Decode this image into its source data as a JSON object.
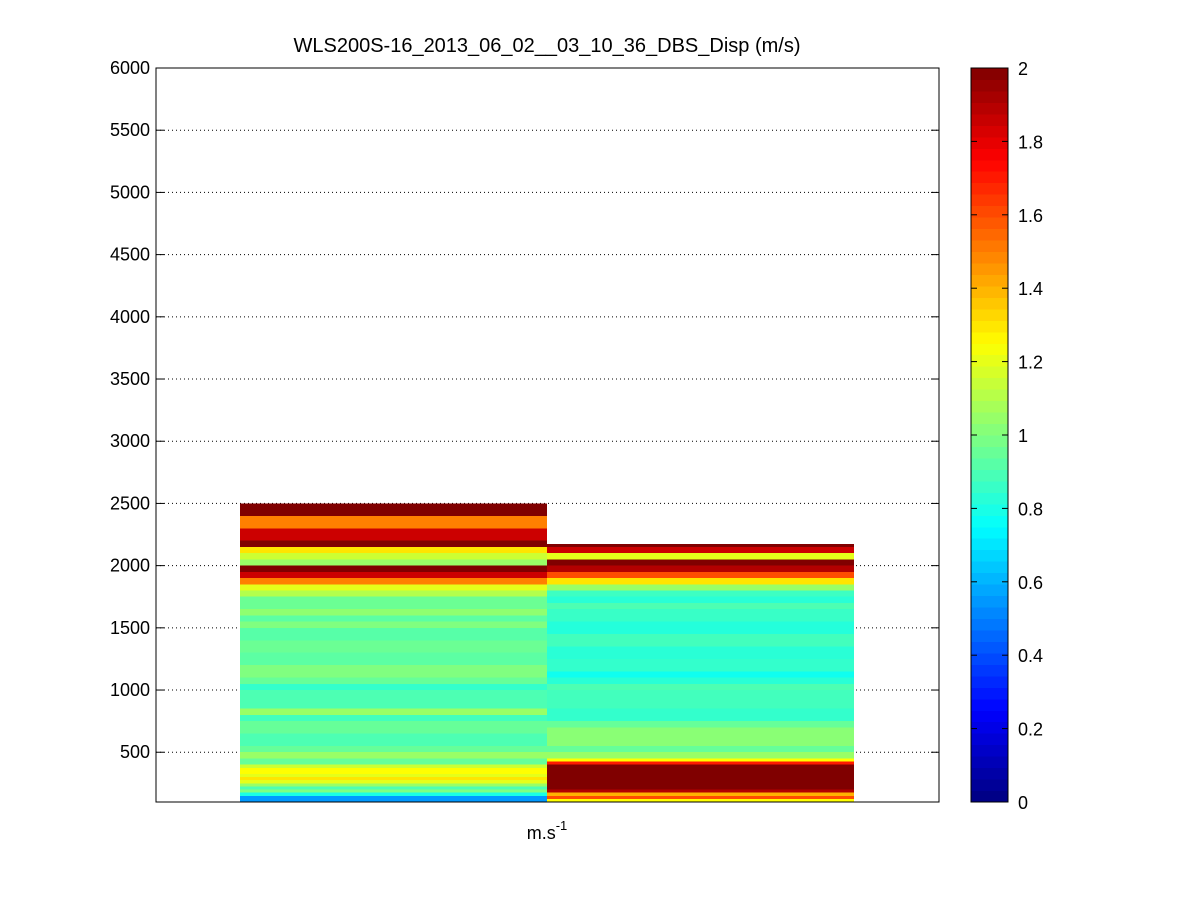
{
  "chart_data": {
    "type": "heatmap",
    "title": "WLS200S-16_2013_06_02__03_10_36_DBS_Disp (m/s)",
    "xlabel_base": "m.s",
    "xlabel_sup": "-1",
    "ylabel": "",
    "ylim": [
      100,
      6000
    ],
    "yticks": [
      500,
      1000,
      1500,
      2000,
      2500,
      3000,
      3500,
      4000,
      4500,
      5000,
      5500,
      6000
    ],
    "grid": "horizontal-dotted",
    "colormap": "jet",
    "clim": [
      0,
      2
    ],
    "colorbar_ticks": [
      0,
      0.2,
      0.4,
      0.6,
      0.8,
      1,
      1.2,
      1.4,
      1.6,
      1.8,
      2
    ],
    "colorbar_position": "right",
    "columns": [
      {
        "bands": [
          {
            "y0": 100,
            "y1": 150,
            "v": 0.55
          },
          {
            "y0": 150,
            "y1": 175,
            "v": 0.8
          },
          {
            "y0": 175,
            "y1": 200,
            "v": 1.0
          },
          {
            "y0": 200,
            "y1": 225,
            "v": 0.9
          },
          {
            "y0": 225,
            "y1": 250,
            "v": 1.05
          },
          {
            "y0": 250,
            "y1": 275,
            "v": 1.2
          },
          {
            "y0": 275,
            "y1": 300,
            "v": 1.3
          },
          {
            "y0": 300,
            "y1": 325,
            "v": 1.2
          },
          {
            "y0": 325,
            "y1": 375,
            "v": 1.25
          },
          {
            "y0": 375,
            "y1": 400,
            "v": 1.15
          },
          {
            "y0": 400,
            "y1": 450,
            "v": 0.95
          },
          {
            "y0": 450,
            "y1": 500,
            "v": 1.05
          },
          {
            "y0": 500,
            "y1": 550,
            "v": 0.95
          },
          {
            "y0": 550,
            "y1": 650,
            "v": 0.9
          },
          {
            "y0": 650,
            "y1": 750,
            "v": 0.95
          },
          {
            "y0": 750,
            "y1": 800,
            "v": 0.88
          },
          {
            "y0": 800,
            "y1": 850,
            "v": 1.05
          },
          {
            "y0": 850,
            "y1": 1000,
            "v": 0.9
          },
          {
            "y0": 1000,
            "y1": 1050,
            "v": 0.85
          },
          {
            "y0": 1050,
            "y1": 1100,
            "v": 0.95
          },
          {
            "y0": 1100,
            "y1": 1200,
            "v": 1.0
          },
          {
            "y0": 1200,
            "y1": 1300,
            "v": 0.93
          },
          {
            "y0": 1300,
            "y1": 1400,
            "v": 0.96
          },
          {
            "y0": 1400,
            "y1": 1500,
            "v": 0.92
          },
          {
            "y0": 1500,
            "y1": 1550,
            "v": 1.0
          },
          {
            "y0": 1550,
            "y1": 1600,
            "v": 0.93
          },
          {
            "y0": 1600,
            "y1": 1650,
            "v": 1.03
          },
          {
            "y0": 1650,
            "y1": 1750,
            "v": 0.96
          },
          {
            "y0": 1750,
            "y1": 1800,
            "v": 1.1
          },
          {
            "y0": 1800,
            "y1": 1850,
            "v": 1.2
          },
          {
            "y0": 1850,
            "y1": 1900,
            "v": 1.5
          },
          {
            "y0": 1900,
            "y1": 1950,
            "v": 1.85
          },
          {
            "y0": 1950,
            "y1": 2000,
            "v": 2.0
          },
          {
            "y0": 2000,
            "y1": 2050,
            "v": 1.05
          },
          {
            "y0": 2050,
            "y1": 2100,
            "v": 1.15
          },
          {
            "y0": 2100,
            "y1": 2150,
            "v": 1.3
          },
          {
            "y0": 2150,
            "y1": 2200,
            "v": 2.0
          },
          {
            "y0": 2200,
            "y1": 2300,
            "v": 1.85
          },
          {
            "y0": 2300,
            "y1": 2400,
            "v": 1.5
          },
          {
            "y0": 2400,
            "y1": 2500,
            "v": 2.0
          }
        ]
      },
      {
        "bands": [
          {
            "y0": 100,
            "y1": 125,
            "v": 1.25
          },
          {
            "y0": 125,
            "y1": 150,
            "v": 1.6
          },
          {
            "y0": 150,
            "y1": 175,
            "v": 1.4
          },
          {
            "y0": 175,
            "y1": 200,
            "v": 1.9
          },
          {
            "y0": 200,
            "y1": 400,
            "v": 2.0
          },
          {
            "y0": 400,
            "y1": 425,
            "v": 1.7
          },
          {
            "y0": 425,
            "y1": 450,
            "v": 1.25
          },
          {
            "y0": 450,
            "y1": 500,
            "v": 1.05
          },
          {
            "y0": 500,
            "y1": 550,
            "v": 0.95
          },
          {
            "y0": 550,
            "y1": 700,
            "v": 1.02
          },
          {
            "y0": 700,
            "y1": 750,
            "v": 0.95
          },
          {
            "y0": 750,
            "y1": 850,
            "v": 0.85
          },
          {
            "y0": 850,
            "y1": 1000,
            "v": 0.88
          },
          {
            "y0": 1000,
            "y1": 1050,
            "v": 0.9
          },
          {
            "y0": 1050,
            "y1": 1100,
            "v": 0.83
          },
          {
            "y0": 1100,
            "y1": 1150,
            "v": 0.78
          },
          {
            "y0": 1150,
            "y1": 1250,
            "v": 0.85
          },
          {
            "y0": 1250,
            "y1": 1350,
            "v": 0.83
          },
          {
            "y0": 1350,
            "y1": 1450,
            "v": 0.88
          },
          {
            "y0": 1450,
            "y1": 1550,
            "v": 0.82
          },
          {
            "y0": 1550,
            "y1": 1650,
            "v": 0.86
          },
          {
            "y0": 1650,
            "y1": 1700,
            "v": 0.9
          },
          {
            "y0": 1700,
            "y1": 1750,
            "v": 0.83
          },
          {
            "y0": 1750,
            "y1": 1800,
            "v": 0.87
          },
          {
            "y0": 1800,
            "y1": 1850,
            "v": 1.05
          },
          {
            "y0": 1850,
            "y1": 1900,
            "v": 1.3
          },
          {
            "y0": 1900,
            "y1": 1950,
            "v": 1.6
          },
          {
            "y0": 1950,
            "y1": 2000,
            "v": 1.9
          },
          {
            "y0": 2000,
            "y1": 2050,
            "v": 2.0
          },
          {
            "y0": 2050,
            "y1": 2100,
            "v": 1.2
          },
          {
            "y0": 2100,
            "y1": 2150,
            "v": 1.85
          },
          {
            "y0": 2150,
            "y1": 2175,
            "v": 2.0
          }
        ]
      }
    ]
  }
}
